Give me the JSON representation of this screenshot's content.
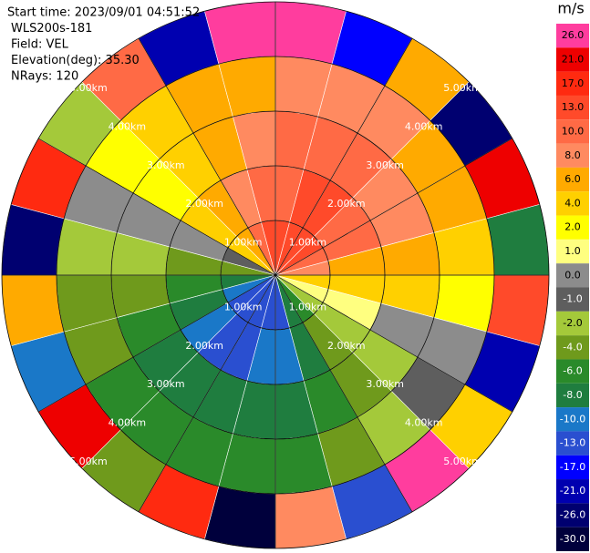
{
  "chart_data": {
    "type": "ppi",
    "annotations": [
      "Start time: 2023/09/01 04:51:52",
      "WLS200s-181",
      "Field: VEL",
      "Elevation(deg): 35.30",
      "NRays: 120"
    ],
    "rlim": [
      0,
      5
    ],
    "rticks": [
      {
        "value": 1,
        "label": "1.00km"
      },
      {
        "value": 2,
        "label": "2.00km"
      },
      {
        "value": 3,
        "label": "3.00km"
      },
      {
        "value": 4,
        "label": "4.00km"
      },
      {
        "value": 5,
        "label": "5.00km"
      }
    ],
    "field": {
      "azimuths": [
        7.5,
        22.5,
        37.5,
        52.5,
        67.5,
        82.5,
        97.5,
        112.5,
        127.5,
        142.5,
        157.5,
        172.5,
        187.5,
        202.5,
        217.5,
        232.5,
        247.5,
        262.5,
        277.5,
        292.5,
        307.5,
        322.5,
        337.5,
        352.5
      ],
      "ranges": [
        0.5,
        1.5,
        2.5,
        3.5,
        4.5
      ],
      "values": [
        [
          13,
          11,
          9,
          7,
          24
        ],
        [
          14,
          12,
          9,
          7,
          -18
        ],
        [
          14,
          12,
          9,
          7,
          5
        ],
        [
          12,
          11,
          8,
          6,
          -27
        ],
        [
          10,
          9,
          7,
          5,
          19
        ],
        [
          8,
          6,
          5,
          4,
          -9
        ],
        [
          4,
          4,
          3,
          2,
          12
        ],
        [
          0.6,
          0.5,
          0.4,
          0.3,
          -22
        ],
        [
          -3,
          -3,
          -2,
          -1.5,
          3
        ],
        [
          -6,
          -5,
          -4,
          -3,
          27
        ],
        [
          -9,
          -8,
          -6,
          -5,
          -14
        ],
        [
          -12,
          -10,
          -8,
          -6,
          8
        ],
        [
          -13,
          -11,
          -9,
          -7,
          -29
        ],
        [
          -14,
          -12,
          -9,
          -7,
          15
        ],
        [
          -14,
          -12,
          -9,
          -7,
          -5
        ],
        [
          -12,
          -11,
          -8,
          -6,
          22
        ],
        [
          -10,
          -9,
          -7,
          -5,
          -11
        ],
        [
          -8,
          -6,
          -5,
          -4,
          6
        ],
        [
          -4,
          -4,
          -3,
          -2,
          -24
        ],
        [
          -0.6,
          -0.5,
          -0.4,
          -0.3,
          18
        ],
        [
          3,
          3,
          2,
          1.5,
          -2
        ],
        [
          6,
          5,
          4,
          3,
          11
        ],
        [
          9,
          8,
          6,
          5,
          -20
        ],
        [
          12,
          10,
          8,
          6,
          26
        ]
      ]
    },
    "colorbar": {
      "label": "m/s",
      "levels": [
        {
          "value": 26,
          "label": "26.0"
        },
        {
          "value": 21,
          "label": "21.0"
        },
        {
          "value": 17,
          "label": "17.0"
        },
        {
          "value": 13,
          "label": "13.0"
        },
        {
          "value": 10,
          "label": "10.0"
        },
        {
          "value": 8,
          "label": "8.0"
        },
        {
          "value": 6,
          "label": "6.0"
        },
        {
          "value": 4,
          "label": "4.0"
        },
        {
          "value": 2,
          "label": "2.0"
        },
        {
          "value": 1,
          "label": "1.0"
        },
        {
          "value": 0,
          "label": "0.0"
        },
        {
          "value": -1,
          "label": "-1.0"
        },
        {
          "value": -2,
          "label": "-2.0"
        },
        {
          "value": -4,
          "label": "-4.0"
        },
        {
          "value": -6,
          "label": "-6.0"
        },
        {
          "value": -8,
          "label": "-8.0"
        },
        {
          "value": -10,
          "label": "-10.0"
        },
        {
          "value": -13,
          "label": "-13.0"
        },
        {
          "value": -17,
          "label": "-17.0"
        },
        {
          "value": -21,
          "label": "-21.0"
        },
        {
          "value": -26,
          "label": "-26.0"
        },
        {
          "value": -30,
          "label": "-30.0"
        }
      ],
      "colors": [
        "#ff3d9e",
        "#ee0000",
        "#ff2a10",
        "#ff4a2a",
        "#ff6a45",
        "#ff8a60",
        "#ffaa00",
        "#ffd000",
        "#ffff00",
        "#ffff80",
        "#8c8c8c",
        "#5e5e5e",
        "#a4c93a",
        "#6f9a1c",
        "#2a8a2a",
        "#1f7d3f",
        "#1a78c8",
        "#2a4fd0",
        "#0000ff",
        "#0000b0",
        "#000070",
        "#00003c"
      ]
    }
  }
}
